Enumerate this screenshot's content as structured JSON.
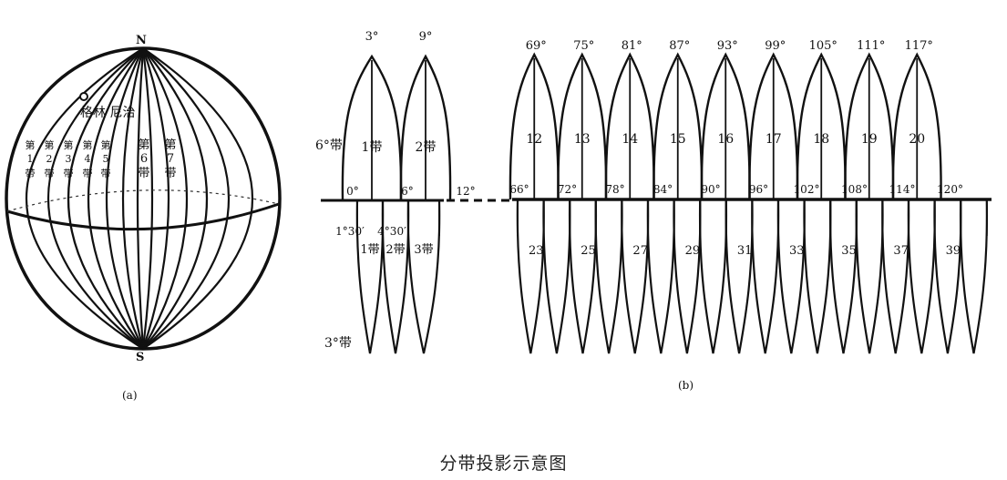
{
  "globe": {
    "north": "N",
    "south": "S",
    "greenwich": "格林 尼治",
    "zones": [
      {
        "a": "第",
        "b": "1",
        "c": "带"
      },
      {
        "a": "第",
        "b": "2",
        "c": "带"
      },
      {
        "a": "第",
        "b": "3",
        "c": "带"
      },
      {
        "a": "第",
        "b": "4",
        "c": "带"
      },
      {
        "a": "第",
        "b": "5",
        "c": "带"
      },
      {
        "a": "第",
        "b": "6",
        "c": "带"
      },
      {
        "a": "第",
        "b": "7",
        "c": "带"
      }
    ],
    "label": "(a)"
  },
  "bands": {
    "label": "(b)",
    "six_degree_name": "6°带",
    "three_degree_name": "3°带",
    "upper_left_meridians": [
      "3°",
      "9°"
    ],
    "upper_left_zones": [
      "1带",
      "2带"
    ],
    "lower_left_zones": [
      "1带",
      "2带",
      "3带"
    ],
    "left_axis_ticks": [
      "0°",
      "6°",
      "12°"
    ],
    "left_sub_ticks": [
      "1°30′",
      "4°30′"
    ],
    "upper_meridians": [
      "69°",
      "75°",
      "81°",
      "87°",
      "93°",
      "99°",
      "105°",
      "111°",
      "117°"
    ],
    "upper_zones": [
      "12",
      "13",
      "14",
      "15",
      "16",
      "17",
      "18",
      "19",
      "20"
    ],
    "axis_ticks": [
      "66°",
      "72°",
      "78°",
      "84°",
      "90°",
      "96°",
      "102°",
      "108°",
      "114°",
      "120°"
    ],
    "lower_zones": [
      "23",
      "25",
      "27",
      "29",
      "31",
      "33",
      "35",
      "37",
      "39"
    ]
  },
  "caption": "分带投影示意图"
}
